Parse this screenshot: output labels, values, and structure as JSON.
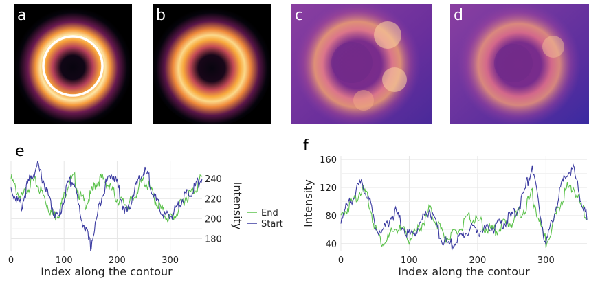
{
  "panels": {
    "a": {
      "label": "a"
    },
    "b": {
      "label": "b"
    },
    "c": {
      "label": "c"
    },
    "d": {
      "label": "d"
    }
  },
  "colors": {
    "end": "#5cc24c",
    "start": "#3a3aa0",
    "grid": "#e6e6e6"
  },
  "chart_data": [
    {
      "type": "line",
      "panel": "e",
      "xlabel": "Index along the contour",
      "ylabel": "Intensity",
      "xlim": [
        0,
        360
      ],
      "ylim": [
        168,
        258
      ],
      "xticks": [
        0,
        100,
        200,
        300
      ],
      "yticks": [
        180,
        200,
        220,
        240
      ],
      "yaxis_side": "right",
      "legend": {
        "placement": "right",
        "entries": [
          "End",
          "Start"
        ]
      },
      "series": [
        {
          "name": "End",
          "color": "#5cc24c",
          "x": [
            0,
            10,
            20,
            30,
            40,
            50,
            60,
            70,
            80,
            90,
            100,
            110,
            120,
            130,
            140,
            150,
            160,
            170,
            180,
            190,
            200,
            210,
            220,
            230,
            240,
            250,
            260,
            270,
            280,
            290,
            300,
            310,
            320,
            330,
            340,
            350,
            360
          ],
          "y": [
            240,
            228,
            220,
            230,
            238,
            234,
            224,
            212,
            203,
            206,
            222,
            238,
            240,
            222,
            215,
            223,
            236,
            240,
            236,
            228,
            220,
            216,
            214,
            218,
            232,
            238,
            232,
            220,
            212,
            204,
            200,
            204,
            214,
            222,
            226,
            232,
            242
          ]
        },
        {
          "name": "Start",
          "color": "#3a3aa0",
          "x": [
            0,
            10,
            20,
            30,
            40,
            50,
            60,
            70,
            80,
            90,
            100,
            110,
            120,
            130,
            140,
            150,
            160,
            170,
            180,
            190,
            200,
            210,
            220,
            230,
            240,
            250,
            260,
            270,
            280,
            290,
            300,
            310,
            320,
            330,
            340,
            350,
            360
          ],
          "y": [
            230,
            220,
            212,
            232,
            244,
            252,
            240,
            222,
            208,
            200,
            222,
            238,
            236,
            204,
            190,
            172,
            196,
            222,
            236,
            246,
            236,
            214,
            205,
            226,
            236,
            248,
            240,
            222,
            210,
            203,
            202,
            210,
            218,
            224,
            228,
            234,
            240
          ]
        }
      ]
    },
    {
      "type": "line",
      "panel": "f",
      "xlabel": "Index along the contour",
      "ylabel": "Intensity",
      "xlim": [
        0,
        360
      ],
      "ylim": [
        30,
        165
      ],
      "xticks": [
        0,
        100,
        200,
        300
      ],
      "yticks": [
        40,
        80,
        120,
        160
      ],
      "yaxis_side": "left",
      "series": [
        {
          "name": "End",
          "color": "#5cc24c",
          "x": [
            0,
            10,
            20,
            30,
            40,
            50,
            60,
            70,
            80,
            90,
            100,
            110,
            120,
            130,
            140,
            150,
            160,
            170,
            180,
            190,
            200,
            210,
            220,
            230,
            240,
            250,
            260,
            270,
            280,
            290,
            300,
            310,
            320,
            330,
            340,
            350,
            360
          ],
          "y": [
            78,
            92,
            104,
            118,
            104,
            62,
            42,
            48,
            62,
            58,
            48,
            54,
            70,
            88,
            72,
            52,
            48,
            56,
            68,
            78,
            72,
            64,
            58,
            62,
            68,
            72,
            82,
            92,
            110,
            72,
            42,
            68,
            96,
            118,
            122,
            96,
            76
          ]
        },
        {
          "name": "Start",
          "color": "#3a3aa0",
          "x": [
            0,
            10,
            20,
            30,
            40,
            50,
            60,
            70,
            80,
            90,
            100,
            110,
            120,
            130,
            140,
            150,
            160,
            170,
            180,
            190,
            200,
            210,
            220,
            230,
            240,
            250,
            260,
            270,
            280,
            290,
            300,
            310,
            320,
            330,
            340,
            350,
            360
          ],
          "y": [
            76,
            94,
            112,
            124,
            108,
            66,
            56,
            74,
            84,
            66,
            52,
            58,
            76,
            90,
            62,
            44,
            38,
            44,
            54,
            62,
            60,
            58,
            62,
            66,
            72,
            78,
            92,
            118,
            152,
            88,
            40,
            76,
            112,
            142,
            146,
            108,
            74
          ]
        }
      ]
    }
  ]
}
